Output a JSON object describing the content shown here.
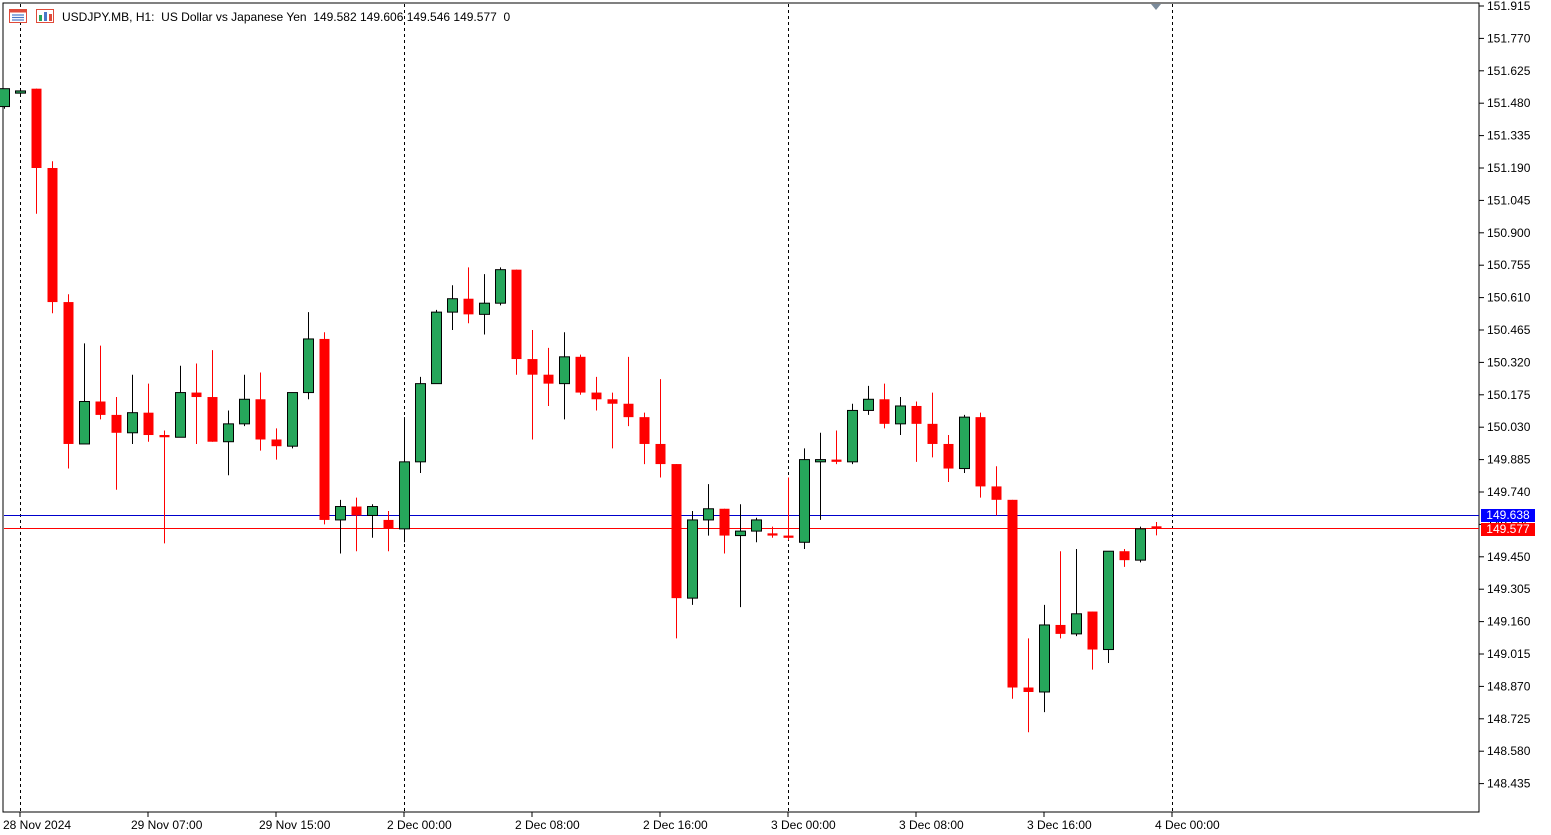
{
  "header": {
    "symbol": "USDJPY.MB",
    "timeframe": "H1:",
    "description": "US Dollar vs Japanese Yen",
    "ohlc_text": "149.582 149.606 149.546 149.577  0",
    "icons": [
      "chart-properties-icon",
      "market-watch-icon"
    ]
  },
  "price_tags": {
    "ask": "149.638",
    "bid": "149.577",
    "ask_color": "#0000ff",
    "bid_color": "#ff0000"
  },
  "colors": {
    "bull": "#26a65b",
    "bear": "#ff0000",
    "grid": "#000000",
    "ask_line": "#0000cc",
    "bid_line": "#ff0000"
  },
  "chart_data": {
    "type": "candlestick",
    "title": "USDJPY.MB, H1: US Dollar vs Japanese Yen",
    "y_ticks": [
      "151.915",
      "151.770",
      "151.625",
      "151.480",
      "151.335",
      "151.190",
      "151.045",
      "150.900",
      "150.755",
      "150.610",
      "150.465",
      "150.320",
      "150.175",
      "150.030",
      "149.885",
      "149.740",
      "149.595",
      "149.450",
      "149.305",
      "149.160",
      "149.015",
      "148.870",
      "148.725",
      "148.580",
      "148.435"
    ],
    "x_ticks": [
      "28 Nov 2024",
      "29 Nov 07:00",
      "29 Nov 15:00",
      "2 Dec 00:00",
      "2 Dec 08:00",
      "2 Dec 16:00",
      "3 Dec 00:00",
      "3 Dec 08:00",
      "3 Dec 16:00",
      "4 Dec 00:00"
    ],
    "day_separators": [
      "28 Nov 2024",
      "2 Dec 00:00",
      "3 Dec 00:00",
      "4 Dec 00:00"
    ],
    "ylim": [
      148.33,
      151.93
    ],
    "candles": [
      {
        "o": 151.465,
        "h": 151.545,
        "l": 151.455,
        "c": 151.545
      },
      {
        "o": 151.525,
        "h": 151.545,
        "l": 151.515,
        "c": 151.535
      },
      {
        "o": 151.545,
        "h": 151.545,
        "l": 150.985,
        "c": 151.19
      },
      {
        "o": 151.19,
        "h": 151.22,
        "l": 150.54,
        "c": 150.59
      },
      {
        "o": 150.59,
        "h": 150.625,
        "l": 149.845,
        "c": 149.955
      },
      {
        "o": 149.955,
        "h": 150.405,
        "l": 149.955,
        "c": 150.145
      },
      {
        "o": 150.145,
        "h": 150.395,
        "l": 150.065,
        "c": 150.085
      },
      {
        "o": 150.085,
        "h": 150.165,
        "l": 149.75,
        "c": 150.005
      },
      {
        "o": 150.005,
        "h": 150.265,
        "l": 149.955,
        "c": 150.095
      },
      {
        "o": 150.095,
        "h": 150.225,
        "l": 149.965,
        "c": 149.995
      },
      {
        "o": 149.995,
        "h": 150.015,
        "l": 149.51,
        "c": 149.985
      },
      {
        "o": 149.985,
        "h": 150.305,
        "l": 149.985,
        "c": 150.185
      },
      {
        "o": 150.185,
        "h": 150.315,
        "l": 149.955,
        "c": 150.165
      },
      {
        "o": 150.165,
        "h": 150.375,
        "l": 149.965,
        "c": 149.965
      },
      {
        "o": 149.965,
        "h": 150.105,
        "l": 149.815,
        "c": 150.045
      },
      {
        "o": 150.045,
        "h": 150.265,
        "l": 150.035,
        "c": 150.155
      },
      {
        "o": 150.155,
        "h": 150.275,
        "l": 149.925,
        "c": 149.975
      },
      {
        "o": 149.975,
        "h": 150.025,
        "l": 149.885,
        "c": 149.945
      },
      {
        "o": 149.945,
        "h": 150.175,
        "l": 149.935,
        "c": 150.185
      },
      {
        "o": 150.185,
        "h": 150.545,
        "l": 150.155,
        "c": 150.425
      },
      {
        "o": 150.425,
        "h": 150.455,
        "l": 149.595,
        "c": 149.615
      },
      {
        "o": 149.615,
        "h": 149.705,
        "l": 149.465,
        "c": 149.675
      },
      {
        "o": 149.675,
        "h": 149.715,
        "l": 149.475,
        "c": 149.635
      },
      {
        "o": 149.635,
        "h": 149.685,
        "l": 149.535,
        "c": 149.675
      },
      {
        "o": 149.615,
        "h": 149.655,
        "l": 149.475,
        "c": 149.575
      },
      {
        "o": 149.575,
        "h": 150.075,
        "l": 149.515,
        "c": 149.875
      },
      {
        "o": 149.875,
        "h": 150.255,
        "l": 149.825,
        "c": 150.225
      },
      {
        "o": 150.225,
        "h": 150.555,
        "l": 150.225,
        "c": 150.545
      },
      {
        "o": 150.545,
        "h": 150.665,
        "l": 150.465,
        "c": 150.605
      },
      {
        "o": 150.605,
        "h": 150.745,
        "l": 150.495,
        "c": 150.535
      },
      {
        "o": 150.535,
        "h": 150.715,
        "l": 150.445,
        "c": 150.585
      },
      {
        "o": 150.585,
        "h": 150.745,
        "l": 150.575,
        "c": 150.735
      },
      {
        "o": 150.735,
        "h": 150.735,
        "l": 150.265,
        "c": 150.335
      },
      {
        "o": 150.335,
        "h": 150.465,
        "l": 149.975,
        "c": 150.265
      },
      {
        "o": 150.265,
        "h": 150.385,
        "l": 150.125,
        "c": 150.225
      },
      {
        "o": 150.225,
        "h": 150.455,
        "l": 150.065,
        "c": 150.345
      },
      {
        "o": 150.345,
        "h": 150.355,
        "l": 150.175,
        "c": 150.185
      },
      {
        "o": 150.185,
        "h": 150.255,
        "l": 150.105,
        "c": 150.155
      },
      {
        "o": 150.155,
        "h": 150.185,
        "l": 149.935,
        "c": 150.135
      },
      {
        "o": 150.135,
        "h": 150.345,
        "l": 150.035,
        "c": 150.075
      },
      {
        "o": 150.075,
        "h": 150.095,
        "l": 149.865,
        "c": 149.955
      },
      {
        "o": 149.955,
        "h": 150.245,
        "l": 149.805,
        "c": 149.865
      },
      {
        "o": 149.865,
        "h": 149.865,
        "l": 149.085,
        "c": 149.265
      },
      {
        "o": 149.265,
        "h": 149.655,
        "l": 149.235,
        "c": 149.615
      },
      {
        "o": 149.615,
        "h": 149.775,
        "l": 149.545,
        "c": 149.665
      },
      {
        "o": 149.665,
        "h": 149.665,
        "l": 149.465,
        "c": 149.545
      },
      {
        "o": 149.545,
        "h": 149.685,
        "l": 149.225,
        "c": 149.565
      },
      {
        "o": 149.565,
        "h": 149.625,
        "l": 149.515,
        "c": 149.615
      },
      {
        "o": 149.555,
        "h": 149.585,
        "l": 149.535,
        "c": 149.545
      },
      {
        "o": 149.545,
        "h": 149.805,
        "l": 149.525,
        "c": 149.535
      },
      {
        "o": 149.515,
        "h": 149.935,
        "l": 149.485,
        "c": 149.885
      },
      {
        "o": 149.875,
        "h": 150.005,
        "l": 149.615,
        "c": 149.885
      },
      {
        "o": 149.885,
        "h": 150.015,
        "l": 149.865,
        "c": 149.875
      },
      {
        "o": 149.875,
        "h": 150.135,
        "l": 149.865,
        "c": 150.105
      },
      {
        "o": 150.105,
        "h": 150.215,
        "l": 150.085,
        "c": 150.155
      },
      {
        "o": 150.155,
        "h": 150.225,
        "l": 150.025,
        "c": 150.045
      },
      {
        "o": 150.045,
        "h": 150.165,
        "l": 149.995,
        "c": 150.125
      },
      {
        "o": 150.125,
        "h": 150.145,
        "l": 149.875,
        "c": 150.045
      },
      {
        "o": 150.045,
        "h": 150.185,
        "l": 149.895,
        "c": 149.955
      },
      {
        "o": 149.955,
        "h": 149.995,
        "l": 149.785,
        "c": 149.845
      },
      {
        "o": 149.845,
        "h": 150.085,
        "l": 149.825,
        "c": 150.075
      },
      {
        "o": 150.075,
        "h": 150.095,
        "l": 149.715,
        "c": 149.765
      },
      {
        "o": 149.765,
        "h": 149.855,
        "l": 149.635,
        "c": 149.705
      },
      {
        "o": 149.705,
        "h": 149.705,
        "l": 148.815,
        "c": 148.865
      },
      {
        "o": 148.865,
        "h": 149.085,
        "l": 148.665,
        "c": 148.845
      },
      {
        "o": 148.845,
        "h": 149.235,
        "l": 148.755,
        "c": 149.145
      },
      {
        "o": 149.145,
        "h": 149.475,
        "l": 149.085,
        "c": 149.105
      },
      {
        "o": 149.105,
        "h": 149.485,
        "l": 149.095,
        "c": 149.195
      },
      {
        "o": 149.205,
        "h": 149.205,
        "l": 148.945,
        "c": 149.035
      },
      {
        "o": 149.035,
        "h": 149.475,
        "l": 148.975,
        "c": 149.475
      },
      {
        "o": 149.475,
        "h": 149.485,
        "l": 149.405,
        "c": 149.435
      },
      {
        "o": 149.435,
        "h": 149.585,
        "l": 149.425,
        "c": 149.575
      },
      {
        "o": 149.582,
        "h": 149.606,
        "l": 149.546,
        "c": 149.577
      }
    ]
  }
}
